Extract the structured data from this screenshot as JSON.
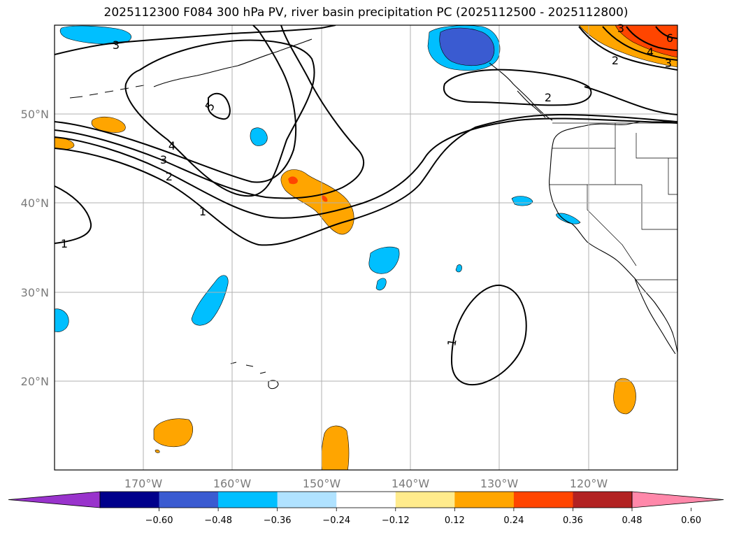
{
  "title": "2025112300 F084 300 hPa PV, river basin precipitation PC (2025112500 - 2025112800)",
  "lat_labels": [
    "50°N",
    "40°N",
    "30°N",
    "20°N"
  ],
  "lon_labels": [
    "170°W",
    "160°W",
    "150°W",
    "140°W",
    "130°W",
    "120°W"
  ],
  "contour_labels": [
    "3",
    "5",
    "4",
    "3",
    "2",
    "1",
    "1",
    "1",
    "2",
    "3",
    "2",
    "4",
    "3",
    "6"
  ],
  "colorbar": {
    "ticks": [
      "−0.60",
      "−0.48",
      "−0.36",
      "−0.24",
      "−0.12",
      "0.12",
      "0.24",
      "0.36",
      "0.48",
      "0.60"
    ],
    "colors": [
      "#9933cc",
      "#00008b",
      "#3a5bd1",
      "#00bfff",
      "#b0e2ff",
      "#ffffff",
      "#ffeb8c",
      "#ffa500",
      "#ff4500",
      "#b22222",
      "#ff88aa"
    ]
  },
  "colors": {
    "grid": "#b0b0b0",
    "contour": "#000000",
    "positive": "#ffa500",
    "positive_strong": "#ff4500",
    "negative": "#00bfff",
    "negative_strong": "#3a5bd1"
  }
}
